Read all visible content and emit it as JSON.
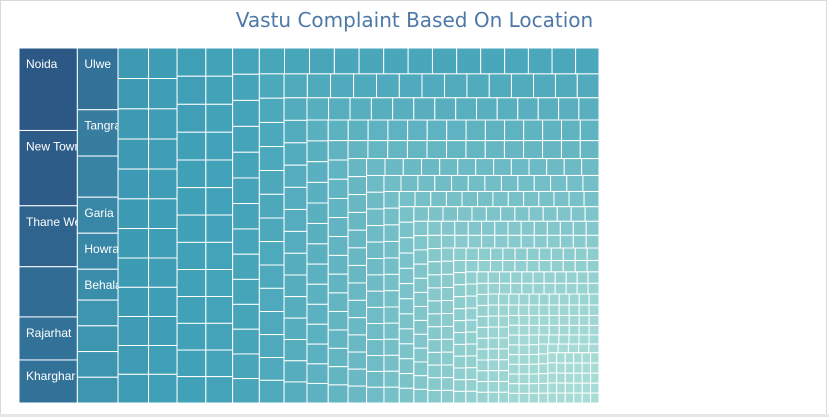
{
  "title": "Vastu Complaint Based On Location",
  "chart_data": {
    "type": "treemap",
    "title": "Vastu Complaint Based On Location",
    "color_scale": {
      "high": "#2c5886",
      "mid": "#40a1b8",
      "low": "#a8dcd6"
    },
    "items": [
      {
        "label": "Noida",
        "value": 23
      },
      {
        "label": "New Town",
        "value": 21
      },
      {
        "label": "Thane West",
        "value": 17
      },
      {
        "label": "",
        "value": 14
      },
      {
        "label": "Rajarhat",
        "value": 12
      },
      {
        "label": "Kharghar",
        "value": 12
      },
      {
        "label": "Ulwe",
        "value": 12
      },
      {
        "label": "Tangra",
        "value": 9
      },
      {
        "label": "",
        "value": 8
      },
      {
        "label": "Garia",
        "value": 7
      },
      {
        "label": "Howrah",
        "value": 7
      },
      {
        "label": "Behala",
        "value": 6
      },
      {
        "label": "",
        "value": 5
      },
      {
        "label": "",
        "value": 5
      },
      {
        "label": "",
        "value": 5
      },
      {
        "label": "",
        "value": 5
      }
    ],
    "other_locations_count": 560,
    "legend": "none"
  }
}
